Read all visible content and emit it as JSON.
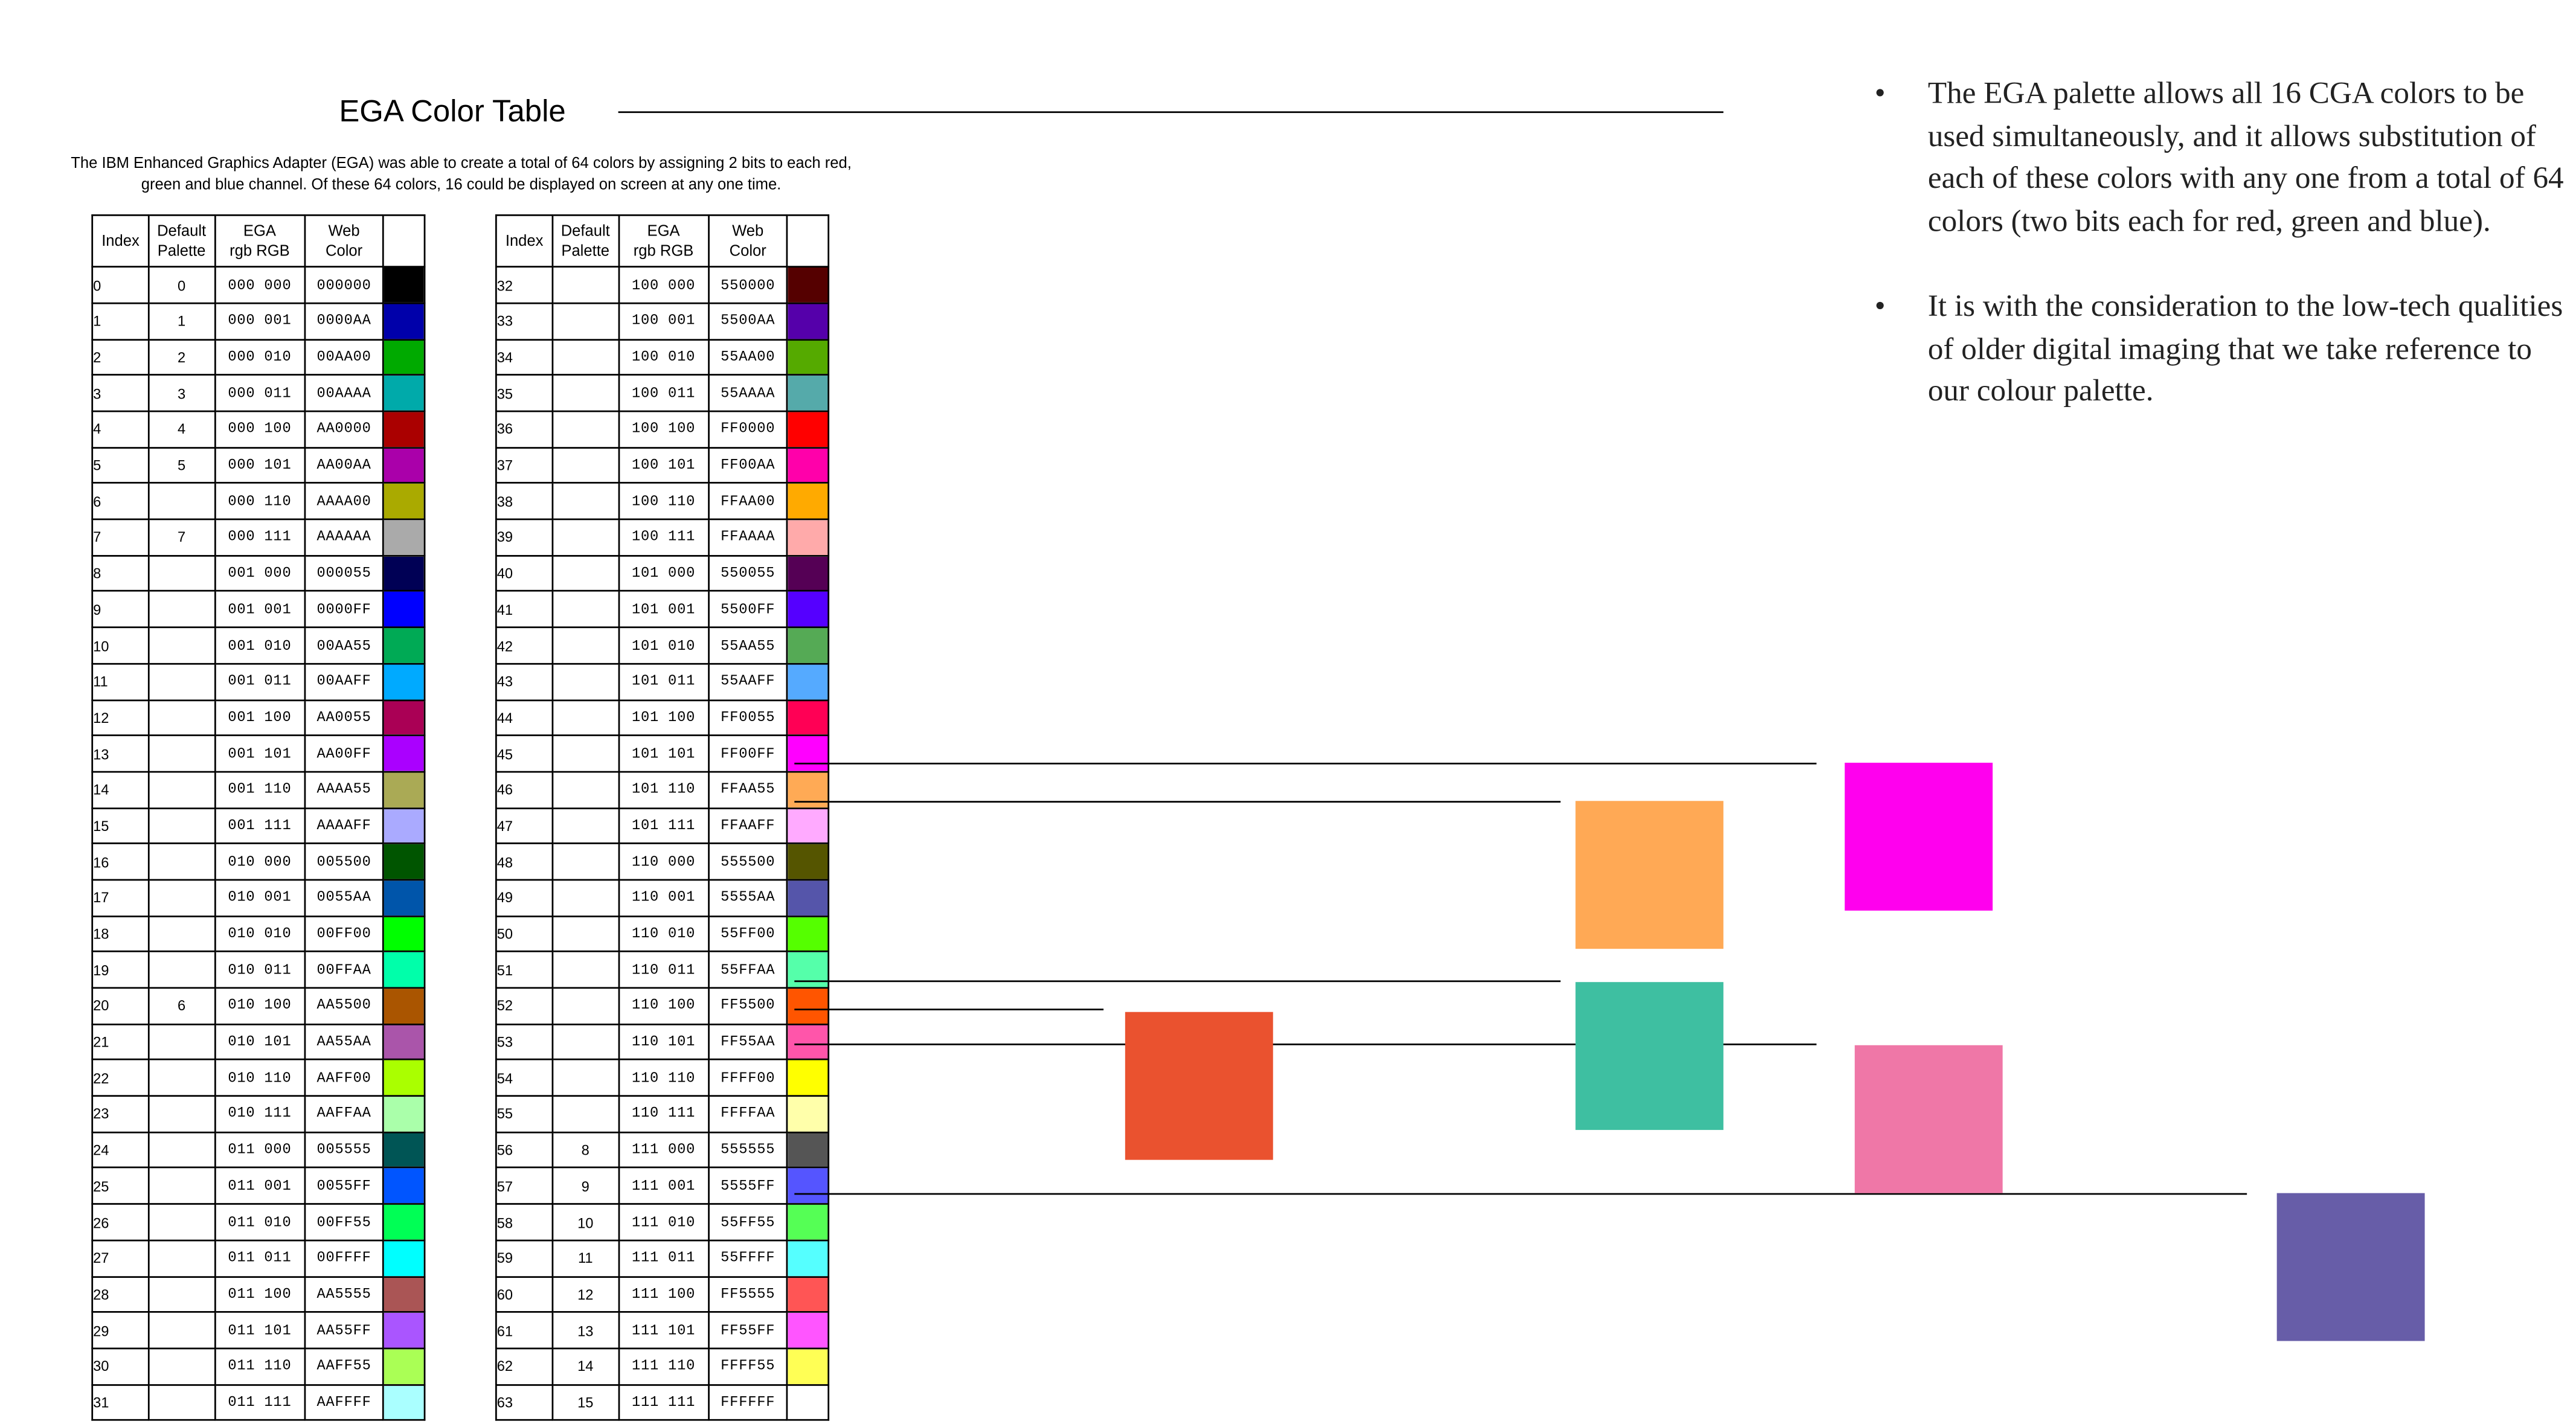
{
  "title": "EGA Color Table",
  "intro": "The IBM Enhanced Graphics Adapter (EGA) was able to create a total of 64 colors by assigning 2 bits to each red, green and blue channel. Of these 64 colors, 16 could be displayed on screen at any one time.",
  "table_headers": {
    "index": "Index",
    "palette": [
      "Default",
      "Palette"
    ],
    "ega": [
      "EGA",
      "rgb RGB"
    ],
    "web": [
      "Web",
      "Color"
    ]
  },
  "rows": [
    [
      "0",
      "0",
      "000 000",
      "000000"
    ],
    [
      "1",
      "1",
      "000 001",
      "0000AA"
    ],
    [
      "2",
      "2",
      "000 010",
      "00AA00"
    ],
    [
      "3",
      "3",
      "000 011",
      "00AAAA"
    ],
    [
      "4",
      "4",
      "000 100",
      "AA0000"
    ],
    [
      "5",
      "5",
      "000 101",
      "AA00AA"
    ],
    [
      "6",
      "",
      "000 110",
      "AAAA00"
    ],
    [
      "7",
      "7",
      "000 111",
      "AAAAAA"
    ],
    [
      "8",
      "",
      "001 000",
      "000055"
    ],
    [
      "9",
      "",
      "001 001",
      "0000FF"
    ],
    [
      "10",
      "",
      "001 010",
      "00AA55"
    ],
    [
      "11",
      "",
      "001 011",
      "00AAFF"
    ],
    [
      "12",
      "",
      "001 100",
      "AA0055"
    ],
    [
      "13",
      "",
      "001 101",
      "AA00FF"
    ],
    [
      "14",
      "",
      "001 110",
      "AAAA55"
    ],
    [
      "15",
      "",
      "001 111",
      "AAAAFF"
    ],
    [
      "16",
      "",
      "010 000",
      "005500"
    ],
    [
      "17",
      "",
      "010 001",
      "0055AA"
    ],
    [
      "18",
      "",
      "010 010",
      "00FF00"
    ],
    [
      "19",
      "",
      "010 011",
      "00FFAA"
    ],
    [
      "20",
      "6",
      "010 100",
      "AA5500"
    ],
    [
      "21",
      "",
      "010 101",
      "AA55AA"
    ],
    [
      "22",
      "",
      "010 110",
      "AAFF00"
    ],
    [
      "23",
      "",
      "010 111",
      "AAFFAA"
    ],
    [
      "24",
      "",
      "011 000",
      "005555"
    ],
    [
      "25",
      "",
      "011 001",
      "0055FF"
    ],
    [
      "26",
      "",
      "011 010",
      "00FF55"
    ],
    [
      "27",
      "",
      "011 011",
      "00FFFF"
    ],
    [
      "28",
      "",
      "011 100",
      "AA5555"
    ],
    [
      "29",
      "",
      "011 101",
      "AA55FF"
    ],
    [
      "30",
      "",
      "011 110",
      "AAFF55"
    ],
    [
      "31",
      "",
      "011 111",
      "AAFFFF"
    ],
    [
      "32",
      "",
      "100 000",
      "550000"
    ],
    [
      "33",
      "",
      "100 001",
      "5500AA"
    ],
    [
      "34",
      "",
      "100 010",
      "55AA00"
    ],
    [
      "35",
      "",
      "100 011",
      "55AAAA"
    ],
    [
      "36",
      "",
      "100 100",
      "FF0000"
    ],
    [
      "37",
      "",
      "100 101",
      "FF00AA"
    ],
    [
      "38",
      "",
      "100 110",
      "FFAA00"
    ],
    [
      "39",
      "",
      "100 111",
      "FFAAAA"
    ],
    [
      "40",
      "",
      "101 000",
      "550055"
    ],
    [
      "41",
      "",
      "101 001",
      "5500FF"
    ],
    [
      "42",
      "",
      "101 010",
      "55AA55"
    ],
    [
      "43",
      "",
      "101 011",
      "55AAFF"
    ],
    [
      "44",
      "",
      "101 100",
      "FF0055"
    ],
    [
      "45",
      "",
      "101 101",
      "FF00FF"
    ],
    [
      "46",
      "",
      "101 110",
      "FFAA55"
    ],
    [
      "47",
      "",
      "101 111",
      "FFAAFF"
    ],
    [
      "48",
      "",
      "110 000",
      "555500"
    ],
    [
      "49",
      "",
      "110 001",
      "5555AA"
    ],
    [
      "50",
      "",
      "110 010",
      "55FF00"
    ],
    [
      "51",
      "",
      "110 011",
      "55FFAA"
    ],
    [
      "52",
      "",
      "110 100",
      "FF5500"
    ],
    [
      "53",
      "",
      "110 101",
      "FF55AA"
    ],
    [
      "54",
      "",
      "110 110",
      "FFFF00"
    ],
    [
      "55",
      "",
      "110 111",
      "FFFFAA"
    ],
    [
      "56",
      "8",
      "111 000",
      "555555"
    ],
    [
      "57",
      "9",
      "111 001",
      "5555FF"
    ],
    [
      "58",
      "10",
      "111 010",
      "55FF55"
    ],
    [
      "59",
      "11",
      "111 011",
      "55FFFF"
    ],
    [
      "60",
      "12",
      "111 100",
      "FF5555"
    ],
    [
      "61",
      "13",
      "111 101",
      "FF55FF"
    ],
    [
      "62",
      "14",
      "111 110",
      "FFFF55"
    ],
    [
      "63",
      "15",
      "111 111",
      "FFFFFF"
    ]
  ],
  "bullets": [
    "The EGA palette allows all 16 CGA colors to be used simultaneously, and it allows substitution of each of these colors with any one from a total of 64 colors (two bits each for red, green and blue).",
    "It is with the consideration to the low-tech qualities of older digital imaging that we take reference to our colour palette."
  ],
  "bullet_marker": "•",
  "selected_swatches": [
    {
      "index": 45,
      "color": "#FF00EE"
    },
    {
      "index": 46,
      "color": "#FFA955"
    },
    {
      "index": 51,
      "color": "#3EBFA1"
    },
    {
      "index": 52,
      "color": "#EA522F"
    },
    {
      "index": 53,
      "color": "#EF77A7"
    },
    {
      "index": 57,
      "color": "#675DA8"
    }
  ]
}
